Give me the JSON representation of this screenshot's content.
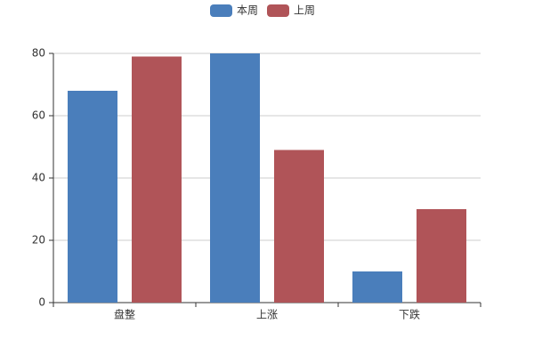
{
  "chart_data": {
    "type": "bar",
    "categories": [
      "盘整",
      "上涨",
      "下跌"
    ],
    "series": [
      {
        "name": "本周",
        "color": "#4a7ebb",
        "values": [
          68,
          80,
          10
        ]
      },
      {
        "name": "上周",
        "color": "#b05458",
        "values": [
          79,
          49,
          30
        ]
      }
    ],
    "ylim": [
      0,
      80
    ],
    "yticks": [
      0,
      20,
      40,
      60,
      80
    ],
    "grid": true,
    "legend": "top"
  }
}
